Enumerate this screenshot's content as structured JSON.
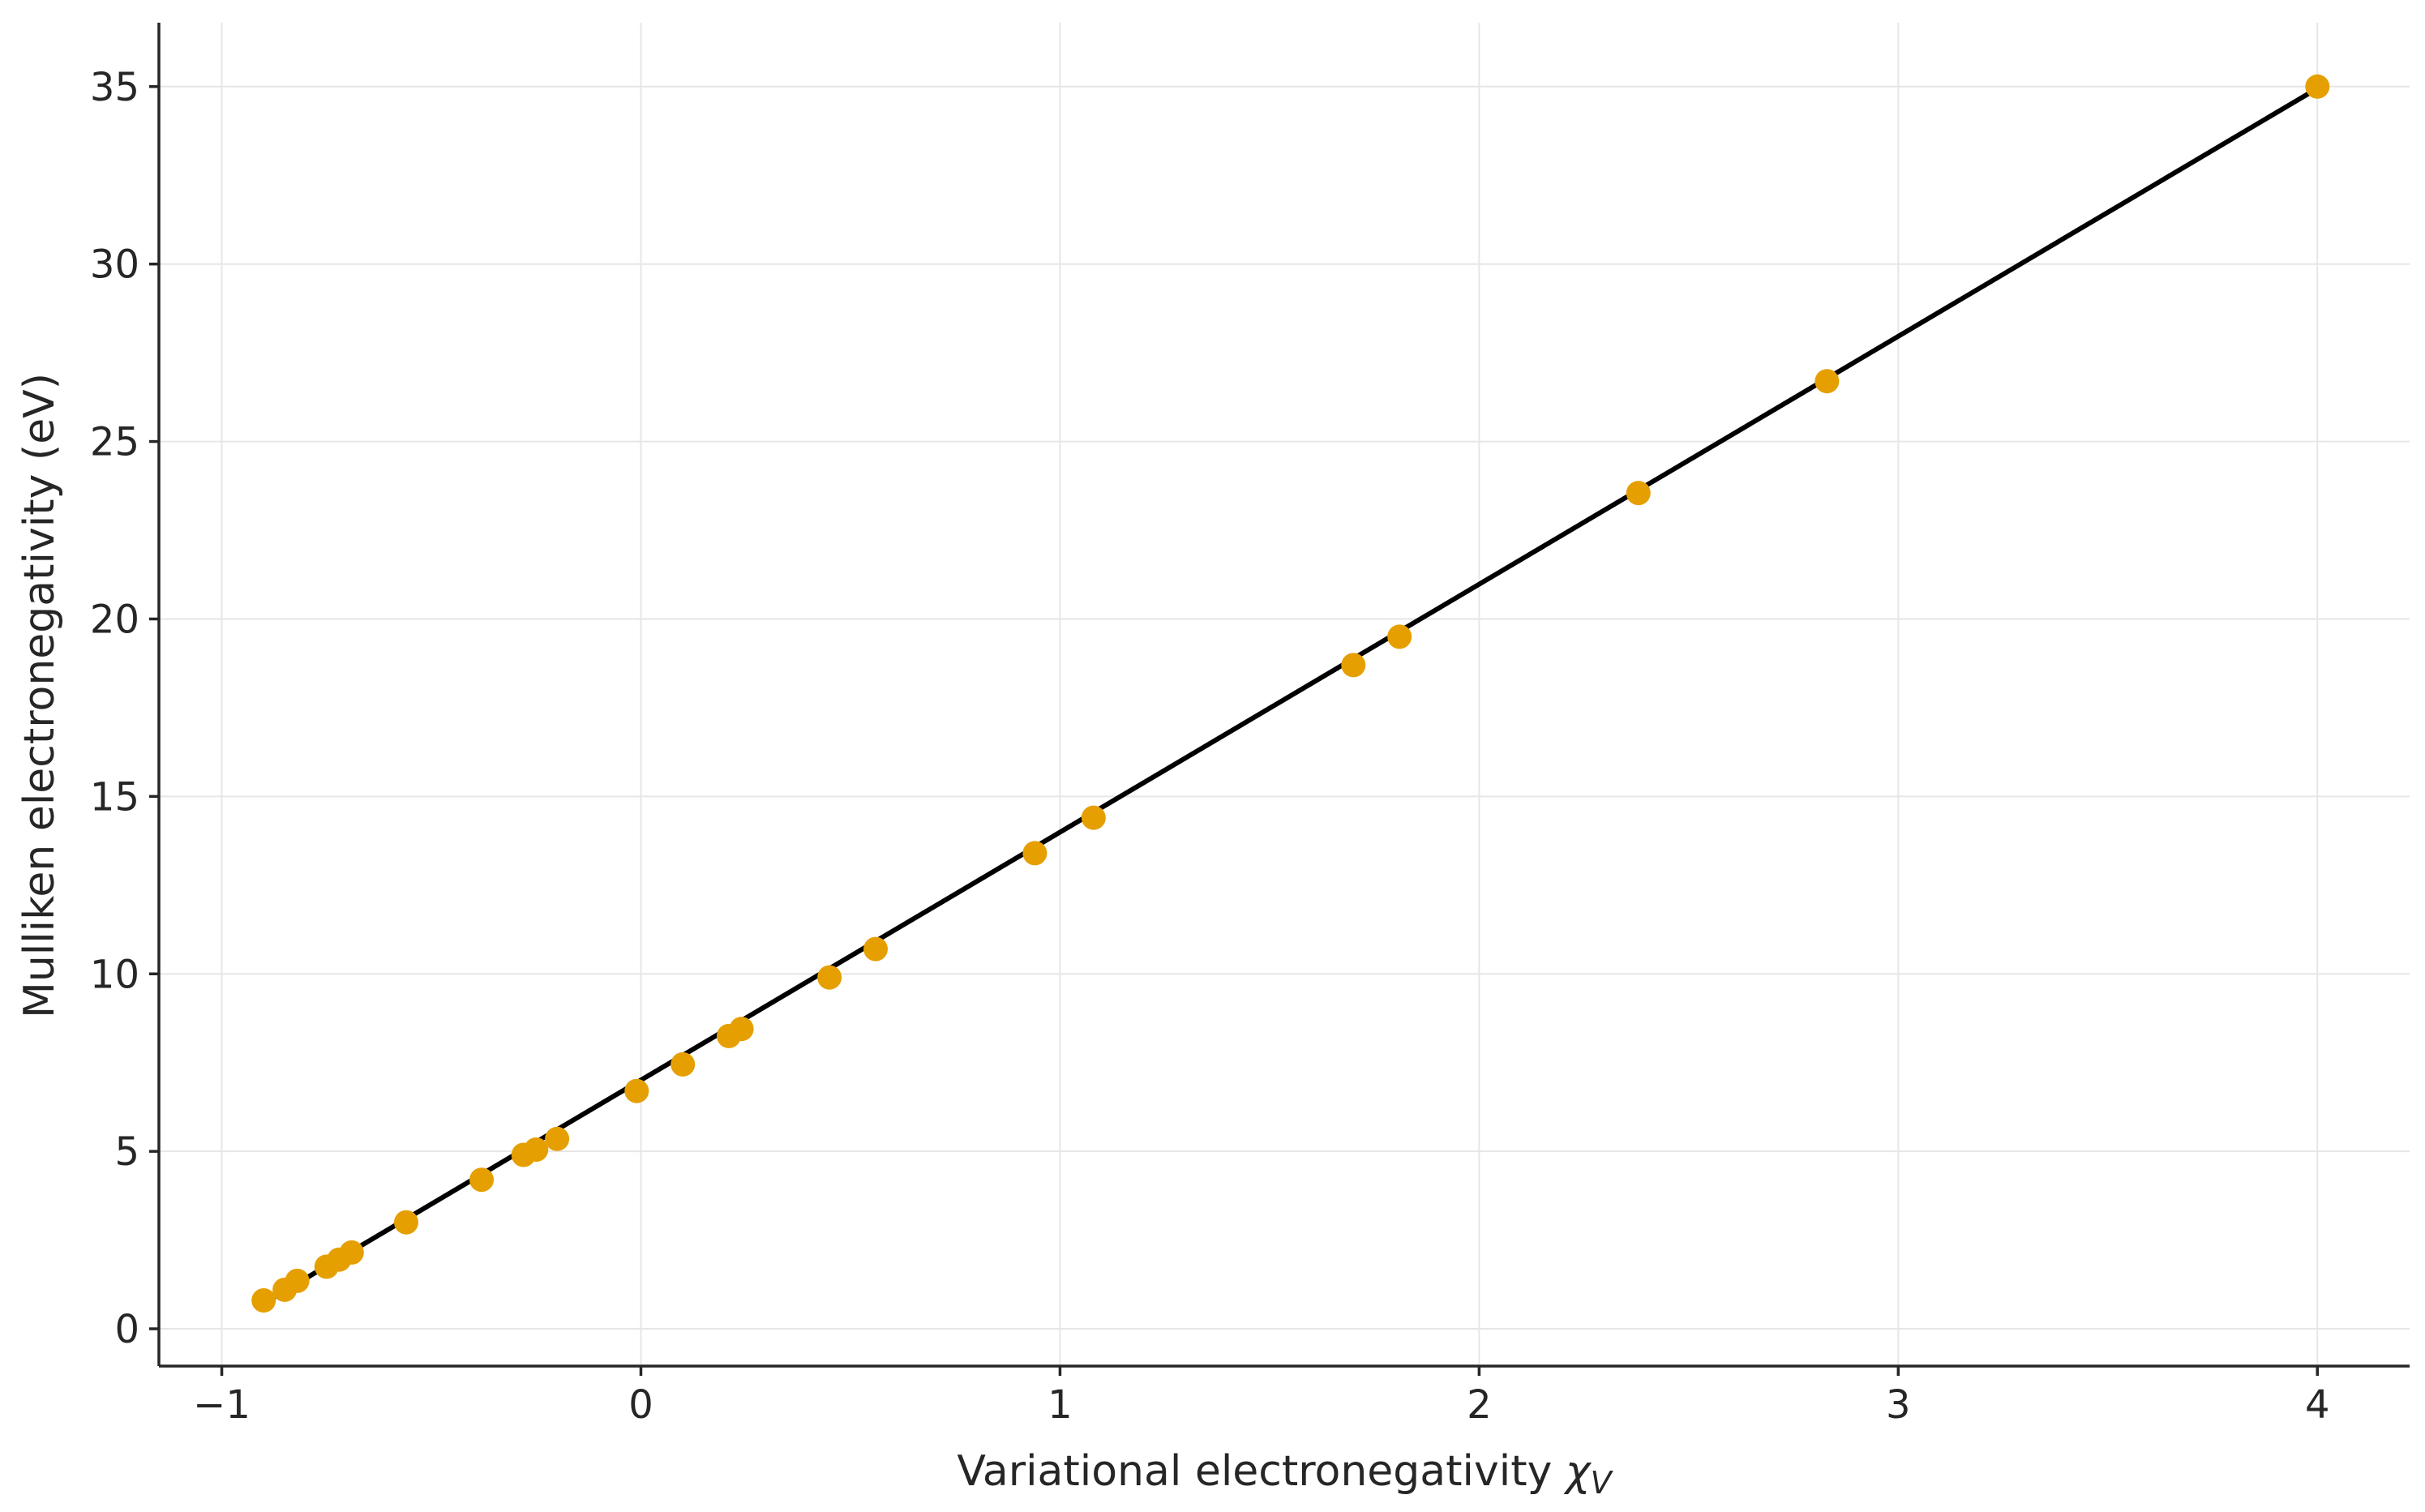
{
  "chart_data": {
    "type": "scatter",
    "xlabel": "Variational electronegativity",
    "xlabel_symbol": "χ",
    "xlabel_subscript": "V",
    "ylabel": "Mulliken electronegativity (eV)",
    "xlim": [
      -1.15,
      4.22
    ],
    "ylim": [
      -1.05,
      36.8
    ],
    "xticks": [
      -1,
      0,
      1,
      2,
      3,
      4
    ],
    "xtick_labels": [
      "−1",
      "0",
      "1",
      "2",
      "3",
      "4"
    ],
    "yticks": [
      0,
      5,
      10,
      15,
      20,
      25,
      30,
      35
    ],
    "ytick_labels": [
      "0",
      "5",
      "10",
      "15",
      "20",
      "25",
      "30",
      "35"
    ],
    "grid": true,
    "marker_color": "#e69f00",
    "line_color": "#000000",
    "series": [
      {
        "type": "scatter",
        "points": [
          {
            "x": -0.9,
            "y": 0.8
          },
          {
            "x": -0.85,
            "y": 1.1
          },
          {
            "x": -0.82,
            "y": 1.35
          },
          {
            "x": -0.75,
            "y": 1.75
          },
          {
            "x": -0.72,
            "y": 1.95
          },
          {
            "x": -0.69,
            "y": 2.15
          },
          {
            "x": -0.56,
            "y": 3.0
          },
          {
            "x": -0.38,
            "y": 4.2
          },
          {
            "x": -0.28,
            "y": 4.9
          },
          {
            "x": -0.25,
            "y": 5.05
          },
          {
            "x": -0.2,
            "y": 5.35
          },
          {
            "x": -0.01,
            "y": 6.7
          },
          {
            "x": 0.1,
            "y": 7.45
          },
          {
            "x": 0.21,
            "y": 8.25
          },
          {
            "x": 0.24,
            "y": 8.45
          },
          {
            "x": 0.45,
            "y": 9.9
          },
          {
            "x": 0.56,
            "y": 10.7
          },
          {
            "x": 0.94,
            "y": 13.4
          },
          {
            "x": 1.08,
            "y": 14.4
          },
          {
            "x": 1.7,
            "y": 18.7
          },
          {
            "x": 1.81,
            "y": 19.5
          },
          {
            "x": 2.38,
            "y": 23.55
          },
          {
            "x": 2.83,
            "y": 26.7
          },
          {
            "x": 4.0,
            "y": 35.0
          }
        ]
      },
      {
        "type": "line",
        "points": [
          {
            "x": -0.9,
            "y": 0.72
          },
          {
            "x": 4.0,
            "y": 34.95
          }
        ]
      }
    ]
  }
}
